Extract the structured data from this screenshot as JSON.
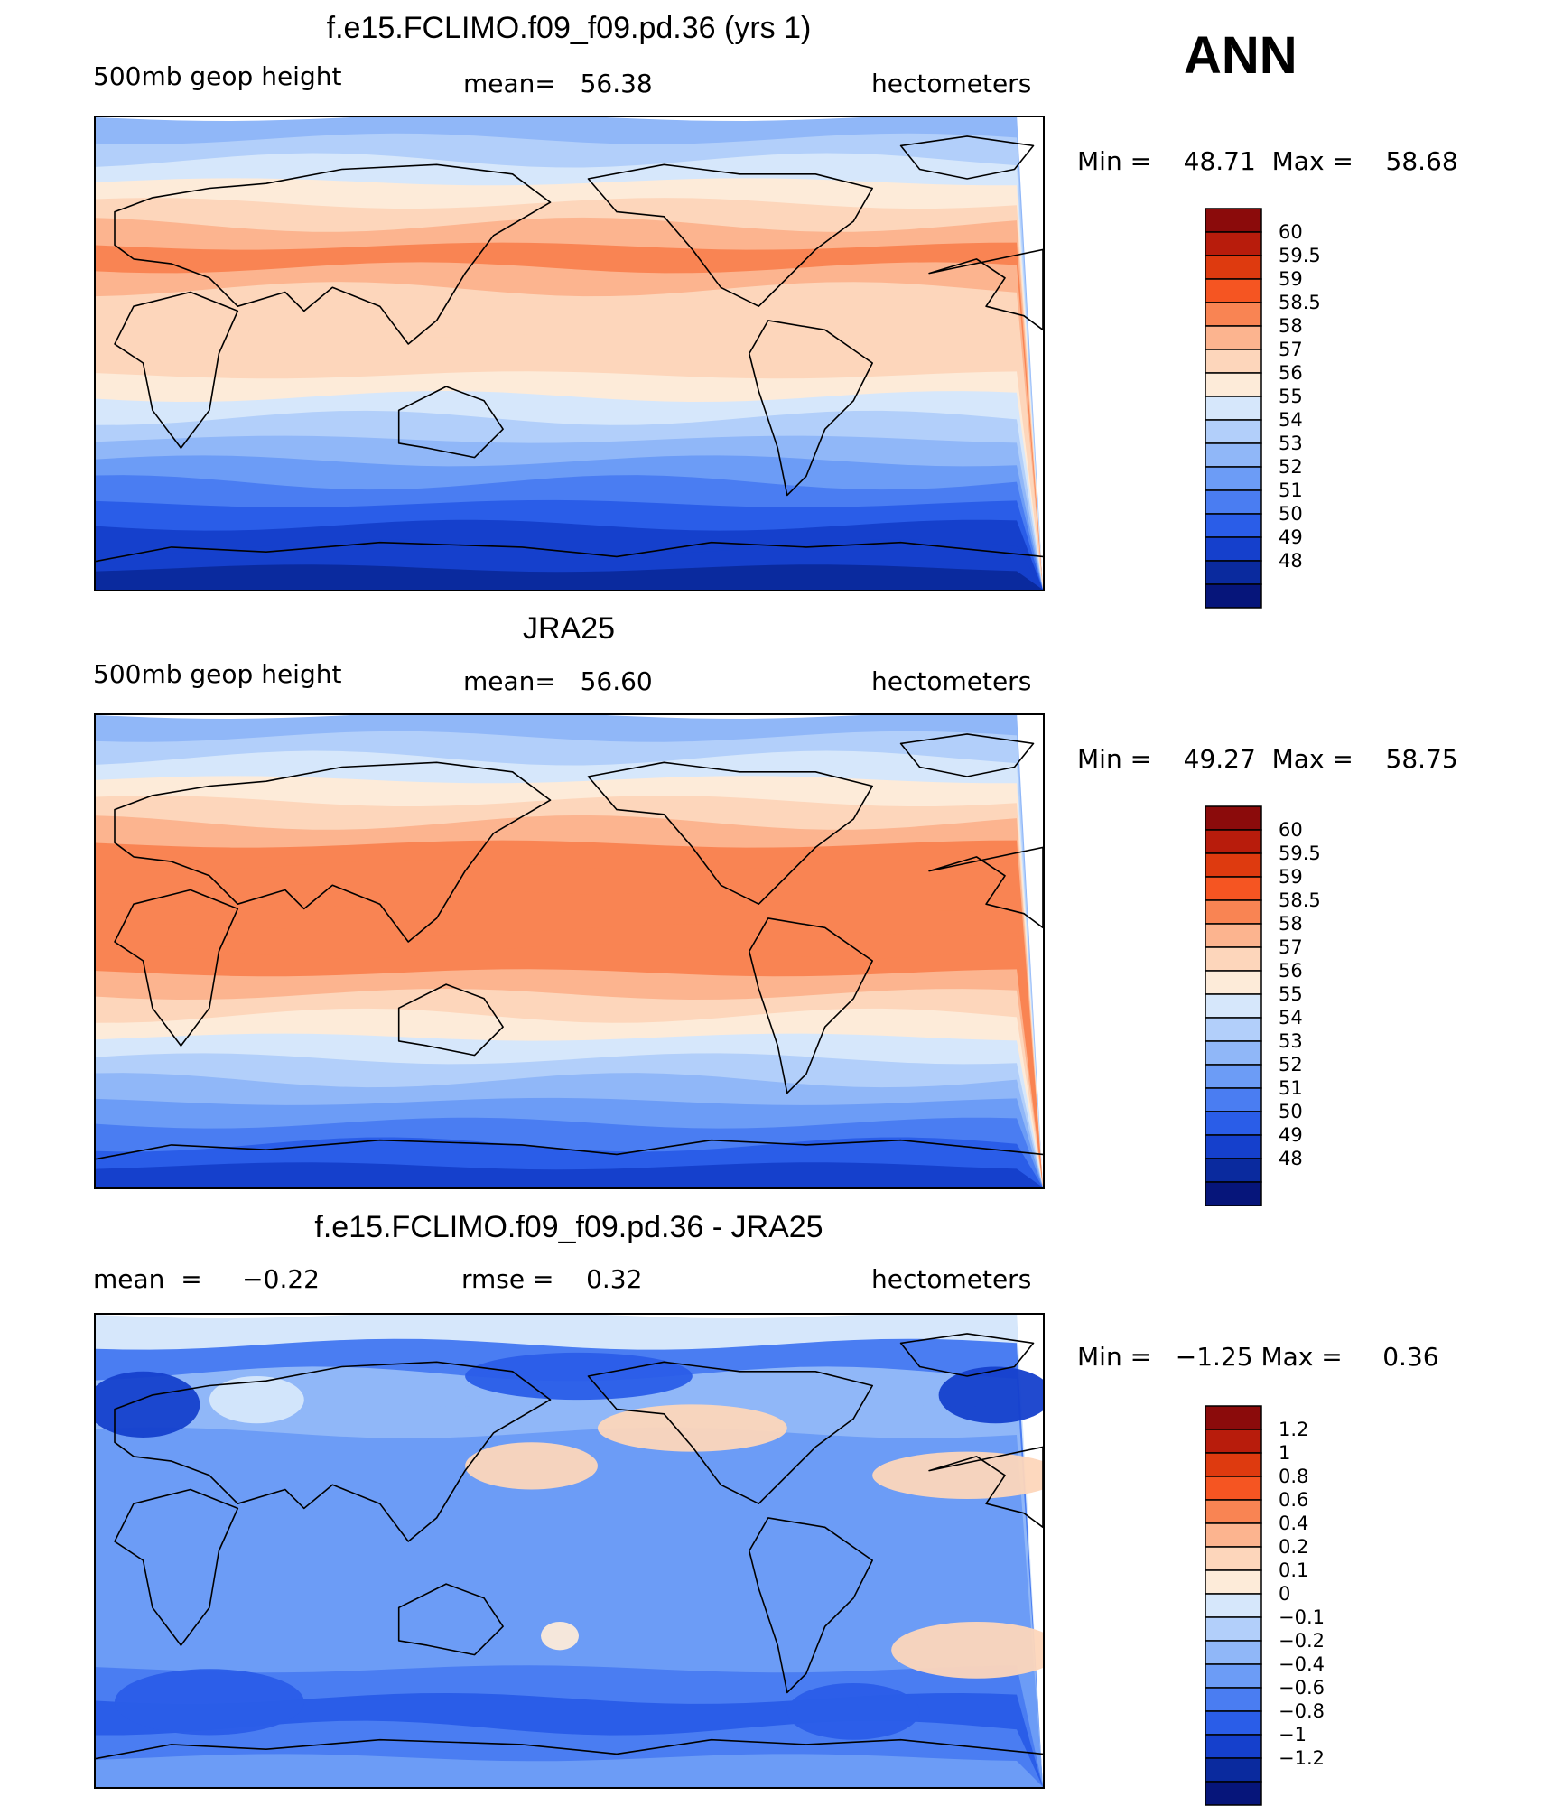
{
  "season": "ANN",
  "panels": [
    {
      "title": "f.e15.FCLIMO.f09_f09.pd.36 (yrs 1)",
      "left_text": "500mb  geop  height",
      "mean_label": "mean=",
      "mean_value": "56.38",
      "units": "hectometers",
      "min_label": "Min  =",
      "min_value": "48.71",
      "max_label": "Max  =",
      "max_value": "58.68",
      "colorbar_labels": [
        "60",
        "59.5",
        "59",
        "58.5",
        "58",
        "57",
        "56",
        "55",
        "54",
        "53",
        "52",
        "51",
        "50",
        "49",
        "48"
      ]
    },
    {
      "title": "JRA25",
      "left_text": "500mb  geop  height",
      "mean_label": "mean=",
      "mean_value": "56.60",
      "units": "hectometers",
      "min_label": "Min  =",
      "min_value": "49.27",
      "max_label": "Max  =",
      "max_value": "58.75",
      "colorbar_labels": [
        "60",
        "59.5",
        "59",
        "58.5",
        "58",
        "57",
        "56",
        "55",
        "54",
        "53",
        "52",
        "51",
        "50",
        "49",
        "48"
      ]
    },
    {
      "title": "f.e15.FCLIMO.f09_f09.pd.36 - JRA25",
      "left_text": "mean  =     −0.22",
      "mean_label": "rmse  =",
      "mean_value": "0.32",
      "units": "hectometers",
      "min_label": "Min  =",
      "min_value": "−1.25",
      "max_label": "Max  =",
      "max_value": "0.36",
      "colorbar_labels": [
        "1.2",
        "1",
        "0.8",
        "0.6",
        "0.4",
        "0.2",
        "0.1",
        "0",
        "−0.1",
        "−0.2",
        "−0.4",
        "−0.6",
        "−0.8",
        "−1",
        "−1.2"
      ]
    }
  ],
  "colorbar_colors": [
    "#8b0b0b",
    "#b81c0c",
    "#de3a0f",
    "#f55522",
    "#f98453",
    "#fcb48f",
    "#fdd6bb",
    "#fdebd9",
    "#d6e7fb",
    "#b2cffa",
    "#90b7f8",
    "#6c9cf6",
    "#4a7df2",
    "#2a5de8",
    "#1540cc",
    "#0a2a9e",
    "#06157a"
  ],
  "chart_data": [
    {
      "type": "heatmap",
      "title": "f.e15.FCLIMO.f09_f09.pd.36 (yrs 1)",
      "variable": "500mb  geop  height",
      "units": "hectometers",
      "mean": 56.38,
      "min": 48.71,
      "max": 58.68,
      "levels": [
        48,
        49,
        50,
        51,
        52,
        53,
        54,
        55,
        56,
        57,
        58,
        58.5,
        59,
        59.5,
        60
      ],
      "band_values_north_to_south": [
        53.5,
        54.5,
        55.5,
        56.5,
        57.5,
        58.2,
        58.6,
        58.2,
        57.8,
        57.8,
        57.6,
        57.3,
        56.6,
        55.5,
        54.5,
        53.5,
        52.5,
        51.5,
        50.5,
        49.5,
        49.0,
        48.5
      ]
    },
    {
      "type": "heatmap",
      "title": "JRA25",
      "variable": "500mb  geop  height",
      "units": "hectometers",
      "mean": 56.6,
      "min": 49.27,
      "max": 58.75,
      "levels": [
        48,
        49,
        50,
        51,
        52,
        53,
        54,
        55,
        56,
        57,
        58,
        58.5,
        59,
        59.5,
        60
      ],
      "band_values_north_to_south": [
        53.5,
        54.5,
        55.5,
        56.5,
        57.5,
        58.2,
        58.6,
        58.7,
        58.7,
        58.7,
        58.7,
        58.6,
        58.2,
        57.5,
        56.5,
        55.5,
        54.5,
        53.5,
        52.5,
        51.5,
        50.5,
        49.5
      ]
    },
    {
      "type": "heatmap",
      "title": "f.e15.FCLIMO.f09_f09.pd.36 - JRA25",
      "units": "hectometers",
      "mean": -0.22,
      "rmse": 0.32,
      "min": -1.25,
      "max": 0.36,
      "levels": [
        -1.2,
        -1,
        -0.8,
        -0.6,
        -0.4,
        -0.2,
        -0.1,
        0,
        0.1,
        0.2,
        0.4,
        0.6,
        0.8,
        1,
        1.2
      ],
      "band_values_north_to_south": [
        0.05,
        -0.5,
        -0.15,
        -0.2,
        -0.3,
        -0.3,
        -0.3,
        -0.35,
        -0.35,
        -0.3,
        -0.3,
        -0.35,
        -0.5,
        -0.7,
        -0.5,
        -0.3
      ]
    }
  ]
}
